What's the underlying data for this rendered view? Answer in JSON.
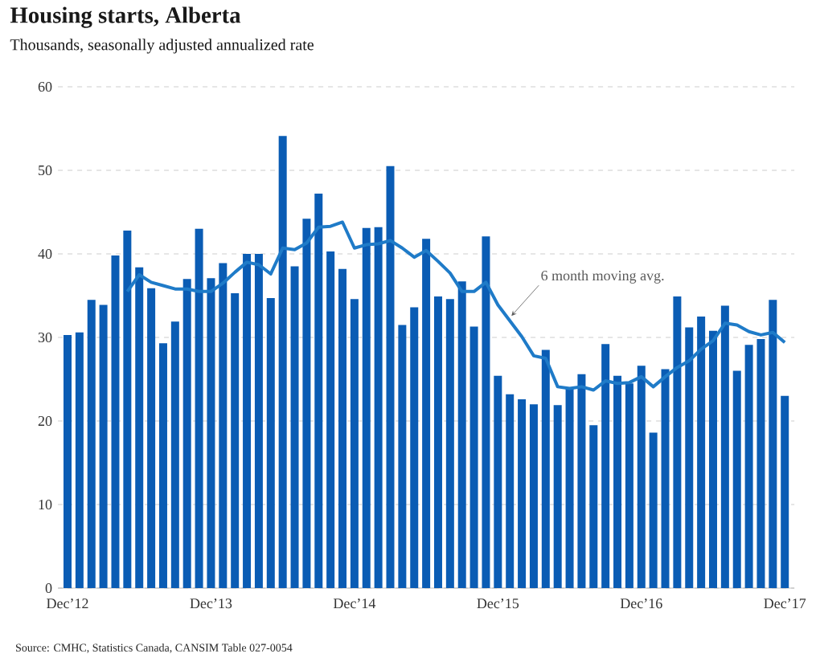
{
  "chart_data": {
    "type": "bar",
    "title": "Housing starts, Alberta",
    "subtitle": "Thousands, seasonally adjusted annualized rate",
    "categories": [
      "Dec’12",
      null,
      null,
      null,
      null,
      null,
      null,
      null,
      null,
      null,
      null,
      null,
      "Dec’13",
      null,
      null,
      null,
      null,
      null,
      null,
      null,
      null,
      null,
      null,
      null,
      "Dec’14",
      null,
      null,
      null,
      null,
      null,
      null,
      null,
      null,
      null,
      null,
      null,
      "Dec’15",
      null,
      null,
      null,
      null,
      null,
      null,
      null,
      null,
      null,
      null,
      null,
      "Dec’16",
      null,
      null,
      null,
      null,
      null,
      null,
      null,
      null,
      null,
      null,
      null,
      "Dec’17"
    ],
    "series": [
      {
        "color": "#0a5cb4",
        "values": [
          30.3,
          30.6,
          34.5,
          33.9,
          39.8,
          42.8,
          38.4,
          35.9,
          29.3,
          31.9,
          37.0,
          43.0,
          37.1,
          38.9,
          35.3,
          40.0,
          40.0,
          34.7,
          54.1,
          38.5,
          44.2,
          47.2,
          40.3,
          38.2,
          34.6,
          43.1,
          43.2,
          50.5,
          31.5,
          33.6,
          41.8,
          34.9,
          34.6,
          36.7,
          31.3,
          42.1,
          25.4,
          23.2,
          22.6,
          22.0,
          28.5,
          21.9,
          23.9,
          25.6,
          19.5,
          29.2,
          25.4,
          24.5,
          26.6,
          18.6,
          26.2,
          34.9,
          31.2,
          32.5,
          30.8,
          33.8,
          26.0,
          29.1,
          29.8,
          34.5,
          23.0
        ]
      },
      {
        "type": "line",
        "name": "6 month moving avg.",
        "color": "#1f7bc8",
        "values": [
          null,
          null,
          null,
          null,
          null,
          35.5,
          37.5,
          36.6,
          36.2,
          35.8,
          35.8,
          35.5,
          35.5,
          36.5,
          37.8,
          39.0,
          38.7,
          37.6,
          40.7,
          40.5,
          41.3,
          43.2,
          43.3,
          43.8,
          40.7,
          41.1,
          41.2,
          41.6,
          40.7,
          39.6,
          40.4,
          39.1,
          37.7,
          35.5,
          35.5,
          36.6,
          33.9,
          32.0,
          30.1,
          27.8,
          27.5,
          24.1,
          23.9,
          24.1,
          23.7,
          24.8,
          24.5,
          24.6,
          25.3,
          24.1,
          25.3,
          26.4,
          27.2,
          28.6,
          29.6,
          31.7,
          31.5,
          30.7,
          30.3,
          30.6,
          29.4
        ]
      }
    ],
    "ylim": [
      0,
      60
    ],
    "yticks": [
      0,
      10,
      20,
      30,
      40,
      50,
      60
    ],
    "grid": "y",
    "annotations": [
      "Source: CMHC, Statistics Canada, CANSIM Table 027-0054"
    ]
  }
}
